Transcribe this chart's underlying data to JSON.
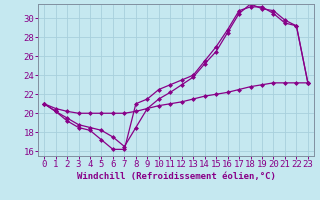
{
  "xlabel": "Windchill (Refroidissement éolien,°C)",
  "background_color": "#c5e8f0",
  "grid_color": "#a8d0dc",
  "line_color": "#880088",
  "spine_color": "#8090a0",
  "xlim": [
    -0.5,
    23.5
  ],
  "ylim": [
    15.5,
    31.5
  ],
  "yticks": [
    16,
    18,
    20,
    22,
    24,
    26,
    28,
    30
  ],
  "xticks": [
    0,
    1,
    2,
    3,
    4,
    5,
    6,
    7,
    8,
    9,
    10,
    11,
    12,
    13,
    14,
    15,
    16,
    17,
    18,
    19,
    20,
    21,
    22,
    23
  ],
  "line1_x": [
    0,
    1,
    2,
    3,
    4,
    5,
    6,
    7,
    8,
    9,
    10,
    11,
    12,
    13,
    14,
    15,
    16,
    17,
    18,
    19,
    20,
    21,
    22,
    23
  ],
  "line1_y": [
    21.0,
    20.2,
    19.2,
    18.5,
    18.2,
    17.2,
    16.2,
    16.2,
    21.0,
    21.5,
    22.5,
    23.0,
    23.5,
    24.0,
    25.5,
    27.0,
    28.8,
    30.8,
    31.2,
    31.2,
    30.5,
    29.5,
    29.2,
    23.2
  ],
  "line2_x": [
    0,
    1,
    2,
    3,
    4,
    5,
    6,
    7,
    8,
    9,
    10,
    11,
    12,
    13,
    14,
    15,
    16,
    17,
    18,
    19,
    20,
    21,
    22,
    23
  ],
  "line2_y": [
    21.0,
    20.2,
    19.5,
    18.8,
    18.5,
    18.2,
    17.5,
    16.5,
    18.5,
    20.5,
    21.5,
    22.2,
    23.0,
    23.8,
    25.2,
    26.5,
    28.5,
    30.5,
    31.5,
    31.0,
    30.8,
    29.8,
    29.2,
    23.2
  ],
  "line3_x": [
    0,
    1,
    2,
    3,
    4,
    5,
    6,
    7,
    8,
    9,
    10,
    11,
    12,
    13,
    14,
    15,
    16,
    17,
    18,
    19,
    20,
    21,
    22,
    23
  ],
  "line3_y": [
    21.0,
    20.5,
    20.2,
    20.0,
    20.0,
    20.0,
    20.0,
    20.0,
    20.2,
    20.5,
    20.8,
    21.0,
    21.2,
    21.5,
    21.8,
    22.0,
    22.2,
    22.5,
    22.8,
    23.0,
    23.2,
    23.2,
    23.2,
    23.2
  ],
  "marker": "D",
  "markersize": 2.0,
  "linewidth": 0.9,
  "tick_fontsize": 6.5,
  "label_fontsize": 6.5
}
